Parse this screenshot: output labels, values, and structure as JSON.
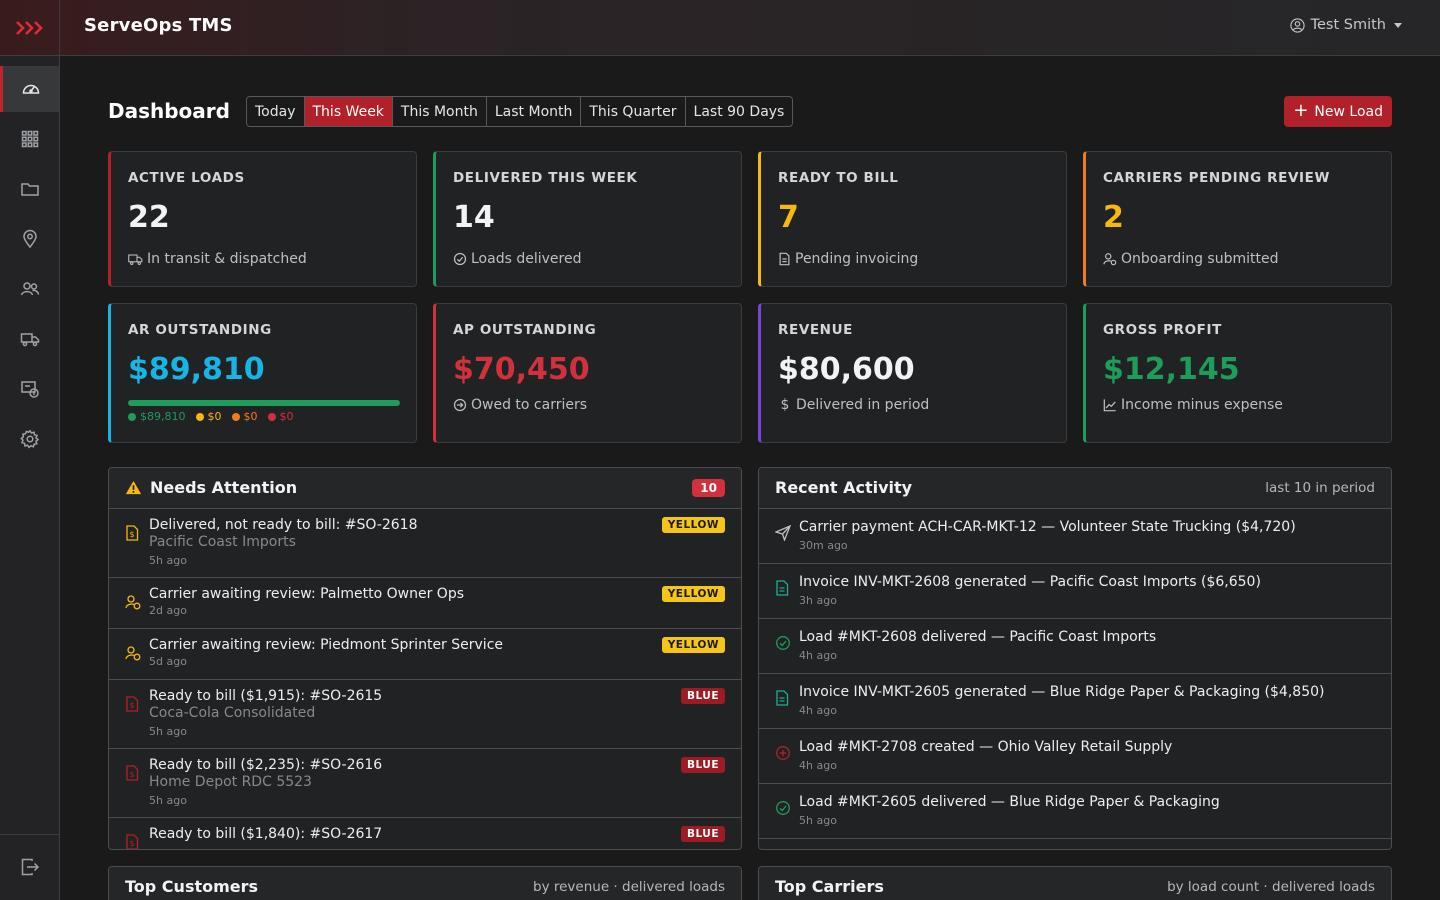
{
  "app": {
    "brand": "ServeOps TMS",
    "user": "Test Smith"
  },
  "header": {
    "title": "Dashboard",
    "ranges": [
      "Today",
      "This Week",
      "This Month",
      "Last Month",
      "This Quarter",
      "Last 90 Days"
    ],
    "active_range": "This Week",
    "new_load_label": "New Load"
  },
  "sidebar": {
    "items": [
      "dashboard-icon",
      "apps-grid-icon",
      "folder-icon",
      "location-pin-icon",
      "users-icon",
      "truck-icon",
      "billing-icon",
      "gear-icon"
    ],
    "logout": "logout-icon"
  },
  "stats": {
    "active_loads": {
      "label": "Active Loads",
      "value": "22",
      "sub": "In transit & dispatched",
      "color": "#b2202a"
    },
    "delivered": {
      "label": "Delivered This Week",
      "value": "14",
      "sub": "Loads delivered",
      "color": "#1e9c5a"
    },
    "ready_to_bill": {
      "label": "Ready to Bill",
      "value": "7",
      "sub": "Pending invoicing",
      "color": "#f5b90f"
    },
    "carriers_pending": {
      "label": "Carriers Pending Review",
      "value": "2",
      "sub": "Onboarding submitted",
      "color": "#f07c1e"
    },
    "ar_outstanding": {
      "label": "AR Outstanding",
      "value": "$89,810",
      "color": "#18b4e4",
      "progress_fraction": 1.0,
      "legend": [
        {
          "text": "$89,810",
          "color": "#1e9c5a"
        },
        {
          "text": "$0",
          "color": "#f5b90f"
        },
        {
          "text": "$0",
          "color": "#f07c1e"
        },
        {
          "text": "$0",
          "color": "#d0313d"
        }
      ]
    },
    "ap_outstanding": {
      "label": "AP Outstanding",
      "value": "$70,450",
      "sub": "Owed to carriers",
      "color": "#d0313d"
    },
    "revenue": {
      "label": "Revenue",
      "value": "$80,600",
      "sub": "Delivered in period",
      "color": "#7b44d8"
    },
    "gross_profit": {
      "label": "Gross Profit",
      "value": "$12,145",
      "sub": "Income minus expense",
      "color": "#1e9c5a"
    }
  },
  "attention": {
    "title": "Needs Attention",
    "count": "10",
    "items": [
      {
        "title": "Delivered, not ready to bill: #SO-2618",
        "sub": "Pacific Coast Imports",
        "ago": "5h ago",
        "tag": "YELLOW"
      },
      {
        "title": "Carrier awaiting review: Palmetto Owner Ops",
        "sub": "",
        "ago": "2d ago",
        "tag": "YELLOW"
      },
      {
        "title": "Carrier awaiting review: Piedmont Sprinter Service",
        "sub": "",
        "ago": "5d ago",
        "tag": "YELLOW"
      },
      {
        "title": "Ready to bill ($1,915): #SO-2615",
        "sub": "Coca-Cola Consolidated",
        "ago": "5h ago",
        "tag": "BLUE"
      },
      {
        "title": "Ready to bill ($2,235): #SO-2616",
        "sub": "Home Depot RDC 5523",
        "ago": "5h ago",
        "tag": "BLUE"
      },
      {
        "title": "Ready to bill ($1,840): #SO-2617",
        "sub": "",
        "ago": "",
        "tag": "BLUE"
      }
    ]
  },
  "activity": {
    "title": "Recent Activity",
    "hint": "last 10 in period",
    "items": [
      {
        "text": "Carrier payment ACH-CAR-MKT-12 — Volunteer State Trucking ($4,720)",
        "ago": "30m ago",
        "icon": "send-icon"
      },
      {
        "text": "Invoice INV-MKT-2608 generated — Pacific Coast Imports ($6,650)",
        "ago": "3h ago",
        "icon": "invoice-icon"
      },
      {
        "text": "Load #MKT-2608 delivered — Pacific Coast Imports",
        "ago": "4h ago",
        "icon": "check-circle-icon"
      },
      {
        "text": "Invoice INV-MKT-2605 generated — Blue Ridge Paper & Packaging ($4,850)",
        "ago": "4h ago",
        "icon": "invoice-icon"
      },
      {
        "text": "Load #MKT-2708 created — Ohio Valley Retail Supply",
        "ago": "4h ago",
        "icon": "plus-circle-icon"
      },
      {
        "text": "Load #MKT-2605 delivered — Blue Ridge Paper & Packaging",
        "ago": "5h ago",
        "icon": "check-circle-icon"
      }
    ]
  },
  "bottom": {
    "top_customers": {
      "title": "Top Customers",
      "hint": "by revenue · delivered loads"
    },
    "top_carriers": {
      "title": "Top Carriers",
      "hint": "by load count · delivered loads"
    }
  }
}
